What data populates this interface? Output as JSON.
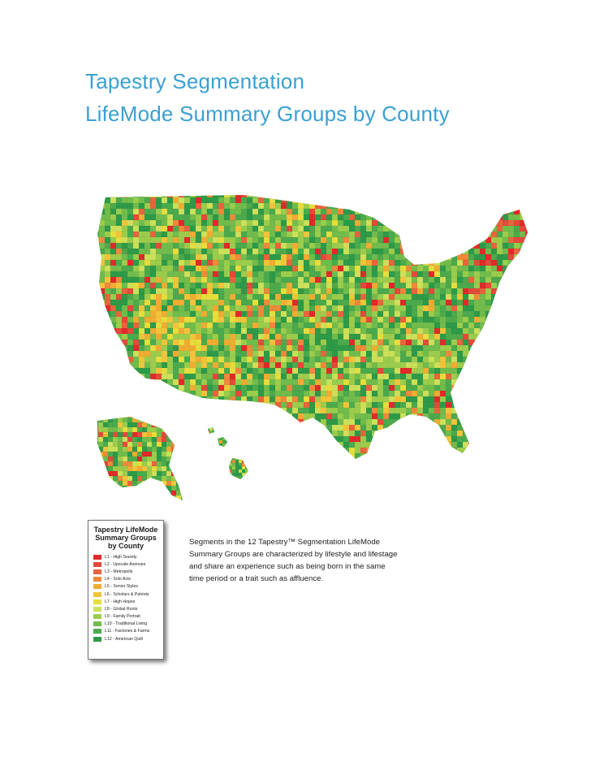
{
  "title": {
    "line1": "Tapestry Segmentation",
    "line2": "LifeMode Summary Groups by County"
  },
  "legend": {
    "heading_line1": "Tapestry LifeMode",
    "heading_line2": "Summary Groups",
    "heading_line3": "by County",
    "items": [
      {
        "label": "L1 - High Society",
        "color": "#e02a2a"
      },
      {
        "label": "L2 - Upscale Avenues",
        "color": "#e24a3a"
      },
      {
        "label": "L3 - Metropolis",
        "color": "#e8643c"
      },
      {
        "label": "L4 - Solo Acts",
        "color": "#ee8a3a"
      },
      {
        "label": "L5 - Senior Styles",
        "color": "#f0ac32"
      },
      {
        "label": "L6 - Scholars & Patriots",
        "color": "#f2c43a"
      },
      {
        "label": "L7 - High Hopes",
        "color": "#e6de3c"
      },
      {
        "label": "L8 - Global Roots",
        "color": "#cde05a"
      },
      {
        "label": "L9 - Family Portrait",
        "color": "#9ccc4c"
      },
      {
        "label": "L10 - Traditional Living",
        "color": "#72bc4c"
      },
      {
        "label": "L11 - Factories & Farms",
        "color": "#4caa4c"
      },
      {
        "label": "L12 - American Quilt",
        "color": "#2e9a48"
      }
    ]
  },
  "description": "Segments in the 12 Tapestry™ Segmentation LifeMode Summary Groups are characterized by lifestyle and lifestage and share an experience such as being born in the same time period or a trait such as affluence."
}
